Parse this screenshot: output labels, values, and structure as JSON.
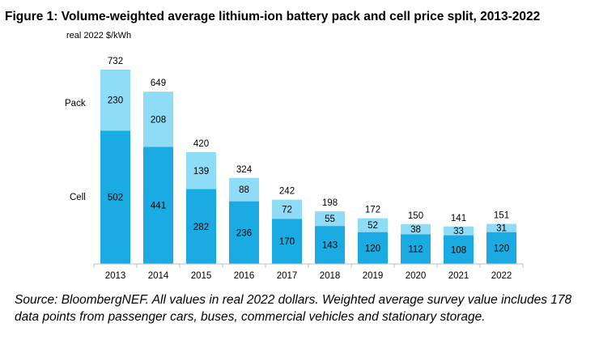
{
  "title": "Figure 1: Volume-weighted average lithium-ion battery pack and cell price split, 2013-2022",
  "unit_label": "real 2022 $/kWh",
  "source_note": "Source: BloombergNEF. All values in real 2022 dollars. Weighted average survey value includes 178 data points from passenger cars, buses, commercial vehicles and stationary storage.",
  "colors": {
    "cell": "#1aabe3",
    "pack": "#8fdcf7",
    "axis": "#bfbfbf"
  },
  "chart_data": {
    "type": "bar",
    "stacked": true,
    "categories": [
      "2013",
      "2014",
      "2015",
      "2016",
      "2017",
      "2018",
      "2019",
      "2020",
      "2021",
      "2022"
    ],
    "series": [
      {
        "name": "Cell",
        "values": [
          502,
          441,
          282,
          236,
          170,
          143,
          120,
          112,
          108,
          120
        ]
      },
      {
        "name": "Pack",
        "values": [
          230,
          208,
          139,
          88,
          72,
          55,
          52,
          38,
          33,
          31
        ]
      }
    ],
    "totals": [
      732,
      649,
      420,
      324,
      242,
      198,
      172,
      150,
      141,
      151
    ],
    "ylabel": "real 2022 $/kWh",
    "ylim": [
      0,
      760
    ],
    "grid": false,
    "legend": "left, beside bars"
  }
}
